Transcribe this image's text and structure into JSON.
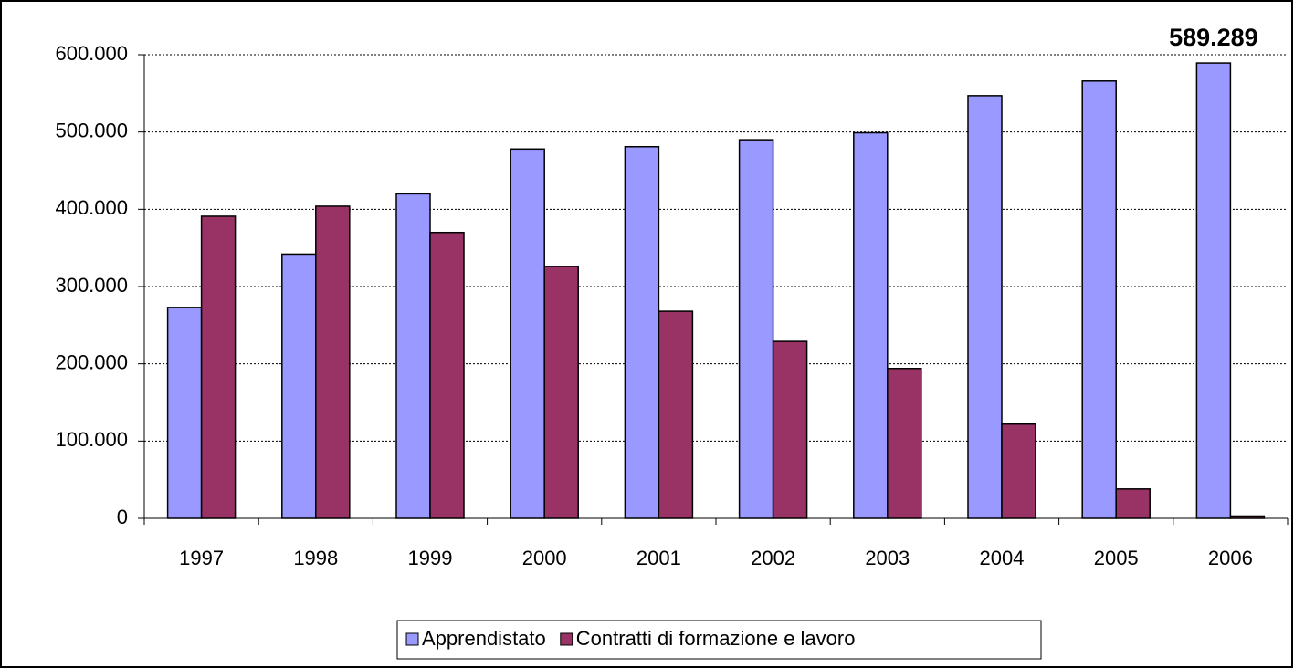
{
  "chart_data": {
    "type": "bar",
    "categories": [
      "1997",
      "1998",
      "1999",
      "2000",
      "2001",
      "2002",
      "2003",
      "2004",
      "2005",
      "2006"
    ],
    "series": [
      {
        "name": "Apprendistato",
        "color": "#9999ff",
        "values": [
          273000,
          342000,
          420000,
          478000,
          481000,
          490000,
          499000,
          547000,
          566000,
          589289
        ],
        "value_labels": [
          null,
          null,
          null,
          null,
          null,
          null,
          null,
          null,
          null,
          "589.289"
        ]
      },
      {
        "name": "Contratti di formazione e lavoro",
        "color": "#993366",
        "values": [
          391000,
          404000,
          370000,
          326000,
          268000,
          229000,
          194000,
          122000,
          38000,
          3000
        ]
      }
    ],
    "ylim": [
      0,
      600000
    ],
    "yticks": [
      0,
      {
        "value": 100000,
        "label": "100.000"
      },
      {
        "value": 200000,
        "label": "200.000"
      },
      {
        "value": 300000,
        "label": "300.000"
      },
      {
        "value": 400000,
        "label": "400.000"
      },
      {
        "value": 500000,
        "label": "500.000"
      },
      {
        "value": 600000,
        "label": "600.000"
      }
    ],
    "grid": true
  }
}
